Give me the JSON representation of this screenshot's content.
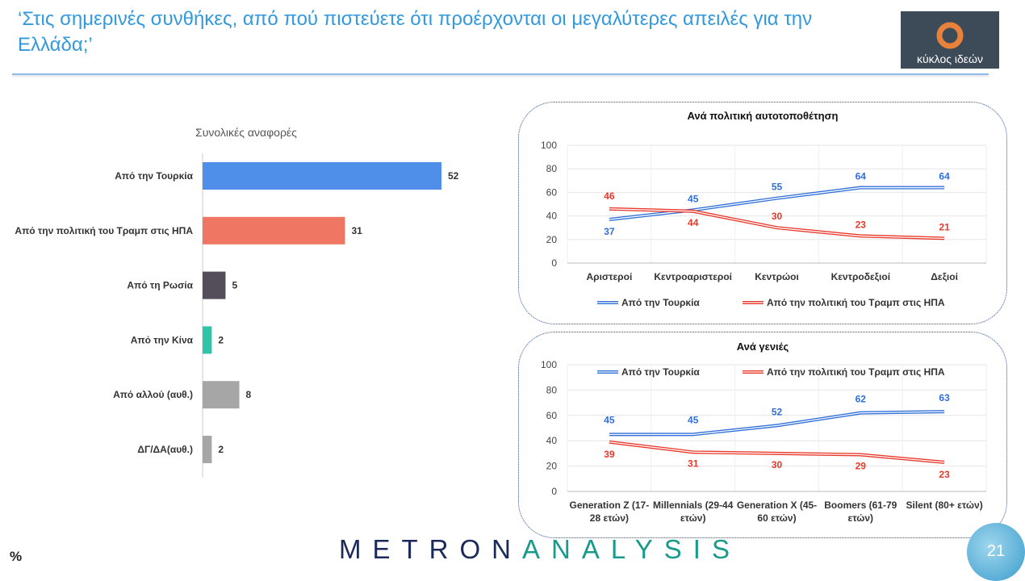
{
  "header": {
    "title": "‘Στις σημερινές συνθήκες, από πού πιστεύετε ότι προέρχονται οι μεγαλύτερες απειλές για την Ελλάδα;’",
    "logo_text": "κύκλος ιδεών"
  },
  "footer": {
    "unit": "%",
    "brand_a": "METRON",
    "brand_b": "ANALYSIS",
    "page": "21"
  },
  "chart_data": [
    {
      "type": "bar",
      "orientation": "horizontal",
      "title": "Συνολικές αναφορές",
      "categories": [
        "Από την Τουρκία",
        "Από την πολιτική του Τραμπ στις ΗΠΑ",
        "Από τη Ρωσία",
        "Από την Κίνα",
        "Από αλλού (αυθ.)",
        "ΔΓ/ΔΑ(αυθ.)"
      ],
      "values": [
        52,
        31,
        5,
        2,
        8,
        2
      ],
      "colors": [
        "#4f8fea",
        "#ef7662",
        "#544d5a",
        "#2ec4a8",
        "#a6a6a6",
        "#a6a6a6"
      ]
    },
    {
      "type": "line",
      "title": "Ανά πολιτική αυτοτοποθέτηση",
      "categories": [
        "Αριστεροί",
        "Κεντροαριστεροί",
        "Κεντρώοι",
        "Κεντροδεξιοί",
        "Δεξιοί"
      ],
      "ylim": [
        0,
        100
      ],
      "yticks": [
        0,
        20,
        40,
        60,
        80,
        100
      ],
      "grid": true,
      "legend": "bottom",
      "series": [
        {
          "name": "Από την Τουρκία",
          "values": [
            37,
            45,
            55,
            64,
            64
          ],
          "color": "#2f6fd8"
        },
        {
          "name": "Από την πολιτική του Τραμπ στις ΗΠΑ",
          "values": [
            46,
            44,
            30,
            23,
            21
          ],
          "color": "#e8382a"
        }
      ]
    },
    {
      "type": "line",
      "title": "Ανά γενιές",
      "categories": [
        "Generation Z  (17-|28 ετών)",
        "Millennials (29-44|ετών)",
        "Generation X  (45-|60 ετών)",
        "Boomers (61-79|ετών)",
        "Silent  (80+ ετών)"
      ],
      "ylim": [
        0,
        100
      ],
      "yticks": [
        0,
        20,
        40,
        60,
        80,
        100
      ],
      "grid": true,
      "legend": "top",
      "series": [
        {
          "name": "Από την Τουρκία",
          "values": [
            45,
            45,
            52,
            62,
            63
          ],
          "color": "#2f6fd8"
        },
        {
          "name": "Από την πολιτική του Τραμπ στις ΗΠΑ",
          "values": [
            39,
            31,
            30,
            29,
            23
          ],
          "color": "#e8382a"
        }
      ]
    }
  ]
}
